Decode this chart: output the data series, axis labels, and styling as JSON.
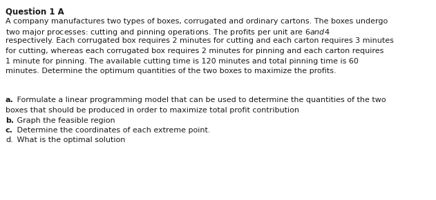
{
  "title": "Question 1 A",
  "paragraph_lines": [
    "A company manufactures two types of boxes, corrugated and ordinary cartons. The boxes undergo",
    "two major processes: cutting and pinning operations. The profits per unit are $6 and $4",
    "respectively. Each corrugated box requires 2 minutes for cutting and each carton requires 3 minutes",
    "for cutting, whereas each corrugated box requires 2 minutes for pinning and each carton requires",
    "1 minute for pinning. The available cutting time is 120 minutes and total pinning time is 60",
    "minutes. Determine the optimum quantities of the two boxes to maximize the profits."
  ],
  "questions": [
    {
      "label": "a.",
      "label_bold": true,
      "text_lines": [
        " Formulate a linear programming model that can be used to determine the quantities of the two",
        "boxes that should be produced in order to maximize total profit contribution"
      ]
    },
    {
      "label": "b.",
      "label_bold": true,
      "text_lines": [
        " Graph the feasible region"
      ]
    },
    {
      "label": "c.",
      "label_bold": true,
      "text_lines": [
        " Determine the coordinates of each extreme point."
      ]
    },
    {
      "label": "d.",
      "label_bold": false,
      "text_lines": [
        " What is the optimal solution"
      ]
    }
  ],
  "background_color": "#ffffff",
  "text_color": "#1a1a1a",
  "title_fontsize": 8.5,
  "body_fontsize": 8.0,
  "font_family": "DejaVu Sans"
}
